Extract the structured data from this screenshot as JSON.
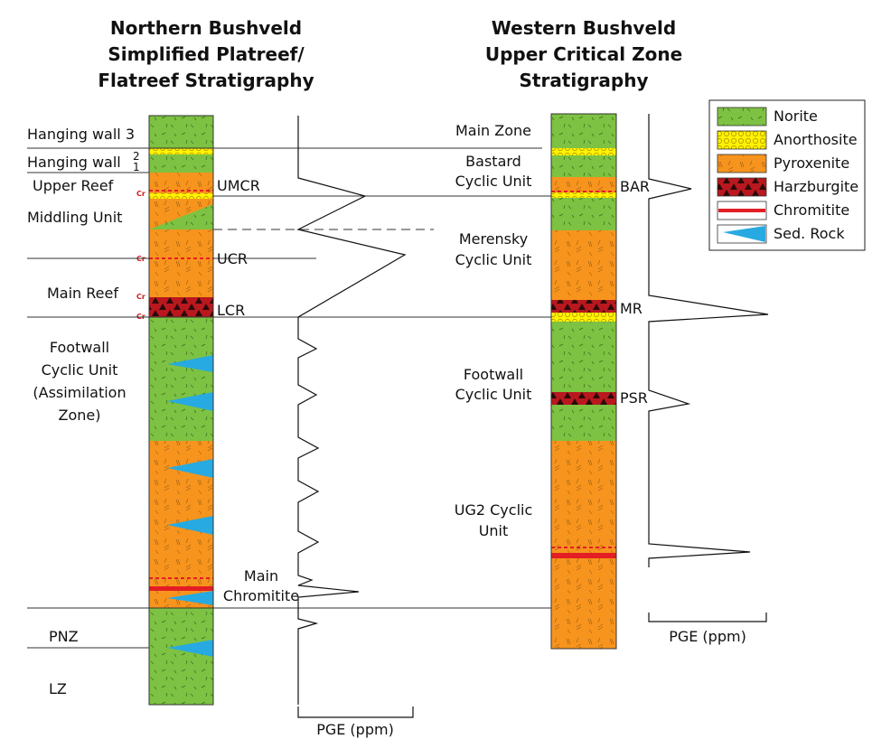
{
  "north": {
    "title": [
      "Northern Bushveld",
      "Simplified Platreef/",
      "Flatreef Stratigraphy"
    ],
    "units": {
      "hw3": "Hanging wall 3",
      "hw": "Hanging wall",
      "hw_num_top": "2",
      "hw_num_bottom": "1",
      "upper_reef": "Upper Reef",
      "middling": "Middling Unit",
      "main_reef": "Main Reef",
      "footwall": [
        "Footwall",
        "Cyclic Unit",
        "(Assimilation",
        "Zone)"
      ],
      "pnz": "PNZ",
      "lz": "LZ"
    },
    "markers": {
      "umcr": "UMCR",
      "ucr": "UCR",
      "lcr": "LCR",
      "main_chromitite": [
        "Main",
        "Chromitite"
      ],
      "cr": "Cr"
    },
    "pge_label": "PGE (ppm)"
  },
  "west": {
    "title": [
      "Western Bushveld",
      "Upper Critical Zone",
      "Stratigraphy"
    ],
    "units": {
      "main_zone": "Main Zone",
      "bastard": [
        "Bastard",
        "Cyclic Unit"
      ],
      "merensky": [
        "Merensky",
        "Cyclic Unit"
      ],
      "footwall": [
        "Footwall",
        "Cyclic Unit"
      ],
      "ug2": [
        "UG2 Cyclic",
        "Unit"
      ]
    },
    "markers": {
      "bar": "BAR",
      "mr": "MR",
      "psr": "PSR"
    },
    "pge_label": "PGE (ppm)"
  },
  "legend": {
    "items": [
      {
        "label": "Norite",
        "kind": "norite"
      },
      {
        "label": "Anorthosite",
        "kind": "anorthosite"
      },
      {
        "label": "Pyroxenite",
        "kind": "pyroxenite"
      },
      {
        "label": "Harzburgite",
        "kind": "harzburgite"
      },
      {
        "label": "Chromitite",
        "kind": "chromitite"
      },
      {
        "label": "Sed. Rock",
        "kind": "sed"
      }
    ]
  },
  "colors": {
    "norite": "#7dc242",
    "pyroxenite": "#f7941d",
    "anorthosite": "#fff200",
    "harzburgite": "#b8181e",
    "chromitite": "#e31e24",
    "sed_rock": "#27aae1"
  }
}
